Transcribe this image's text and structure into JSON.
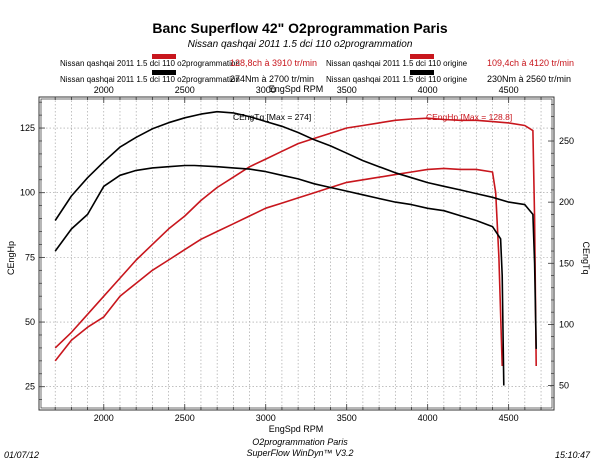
{
  "header": {
    "title": "Banc Superflow 42\" O2programmation Paris",
    "subtitle": "Nissan qashqai 2011 1.5  dci 110 o2programmation"
  },
  "legend": [
    {
      "name": "Nissan qashqai 2011 1.5   dci 110 o2programmation",
      "value": "128,8ch à 3910 tr/min",
      "color": "#c8161d"
    },
    {
      "name": "Nissan qashqai 2011 1.5   dci 110 origine",
      "value": "109,4ch à 4120 tr/min",
      "color": "#c8161d"
    },
    {
      "name": "Nissan qashqai 2011 1.5   dci 110 o2programmation",
      "value": "274Nm à 2700 tr/min",
      "color": "#000000"
    },
    {
      "name": "Nissan qashqai 2011 1.5   dci 110 origine",
      "value": "230Nm à 2560 tr/min",
      "color": "#000000"
    }
  ],
  "footer": {
    "date": "01/07/12",
    "center_line1": "O2programmation Paris",
    "center_line2": "SuperFlow WinDyn™ V3.2",
    "time": "15:10:47"
  },
  "chart_data": {
    "type": "line",
    "xlabel_top": "EngSpd RPM",
    "xlabel_bottom": "EngSpd RPM",
    "ylabel_left": "CEngHp",
    "ylabel_right": "CEngTq",
    "xlim": [
      1600,
      4780
    ],
    "xticks": [
      2000,
      2500,
      3000,
      3500,
      4000,
      4500
    ],
    "ylim_left": [
      16,
      137
    ],
    "yticks_left": [
      25,
      50,
      75,
      100,
      125
    ],
    "ylim_right": [
      30,
      286
    ],
    "yticks_right": [
      50,
      100,
      150,
      200,
      250
    ],
    "grid": true,
    "annotations": [
      {
        "text": "CEngTq [Max = 274]",
        "x": 2750,
        "y_right": 274,
        "color": "#000000"
      },
      {
        "text": "CEngHp [Max = 128.8]",
        "x": 3910,
        "y_left": 128.8,
        "color": "#c8161d"
      }
    ],
    "series": [
      {
        "name": "Nissan qashqai 2011 1.5   dci 110 o2programmation",
        "quantity": "CEngHp",
        "axis": "left",
        "color": "#c8161d",
        "x": [
          1700,
          1800,
          1900,
          2000,
          2100,
          2200,
          2300,
          2400,
          2500,
          2600,
          2700,
          2800,
          2900,
          3000,
          3100,
          3200,
          3300,
          3400,
          3500,
          3600,
          3700,
          3800,
          3900,
          4000,
          4100,
          4200,
          4300,
          4400,
          4500,
          4600,
          4650,
          4660,
          4670
        ],
        "values": [
          40,
          46,
          53,
          60,
          67,
          74,
          80,
          86,
          91,
          97,
          102,
          106,
          110,
          113,
          116,
          119,
          121,
          123,
          125,
          126,
          127,
          128,
          128.5,
          128.8,
          128.3,
          128,
          128,
          127.5,
          127,
          126,
          124,
          90,
          33
        ]
      },
      {
        "name": "Nissan qashqai 2011 1.5   dci 110 origine",
        "quantity": "CEngHp",
        "axis": "left",
        "color": "#c8161d",
        "x": [
          1700,
          1800,
          1900,
          2000,
          2100,
          2200,
          2300,
          2400,
          2500,
          2600,
          2700,
          2800,
          2900,
          3000,
          3100,
          3200,
          3300,
          3400,
          3500,
          3600,
          3700,
          3800,
          3900,
          4000,
          4100,
          4200,
          4300,
          4400,
          4420,
          4440,
          4460
        ],
        "values": [
          35,
          43,
          48,
          52,
          60,
          65,
          70,
          74,
          78,
          82,
          85,
          88,
          91,
          94,
          96,
          98,
          100,
          102,
          104,
          105,
          106,
          107,
          108,
          109,
          109.4,
          109,
          109,
          108,
          100,
          75,
          33
        ]
      },
      {
        "name": "Nissan qashqai 2011 1.5   dci 110 o2programmation",
        "quantity": "CEngTq",
        "axis": "right",
        "color": "#000000",
        "x": [
          1700,
          1800,
          1900,
          2000,
          2100,
          2200,
          2300,
          2400,
          2500,
          2600,
          2700,
          2800,
          2900,
          3000,
          3100,
          3200,
          3300,
          3400,
          3500,
          3600,
          3700,
          3800,
          3900,
          4000,
          4100,
          4200,
          4300,
          4400,
          4500,
          4600,
          4650,
          4660,
          4670
        ],
        "values": [
          185,
          205,
          220,
          233,
          245,
          253,
          260,
          265,
          269,
          272,
          274,
          273,
          270,
          266,
          262,
          257,
          251,
          246,
          240,
          234,
          229,
          224,
          220,
          216,
          213,
          210,
          207,
          204,
          200,
          198,
          190,
          150,
          80
        ]
      },
      {
        "name": "Nissan qashqai 2011 1.5   dci 110 origine",
        "quantity": "CEngTq",
        "axis": "right",
        "color": "#000000",
        "x": [
          1700,
          1800,
          1900,
          2000,
          2100,
          2200,
          2300,
          2400,
          2500,
          2560,
          2700,
          2800,
          2900,
          3000,
          3100,
          3200,
          3300,
          3400,
          3500,
          3600,
          3700,
          3800,
          3900,
          4000,
          4100,
          4200,
          4300,
          4400,
          4450,
          4460,
          4470
        ],
        "values": [
          160,
          178,
          190,
          213,
          222,
          226,
          228,
          229,
          230,
          230,
          229,
          228,
          227,
          225,
          222,
          219,
          215,
          212,
          209,
          206,
          203,
          200,
          198,
          195,
          193,
          189,
          185,
          180,
          170,
          140,
          50
        ]
      }
    ]
  }
}
